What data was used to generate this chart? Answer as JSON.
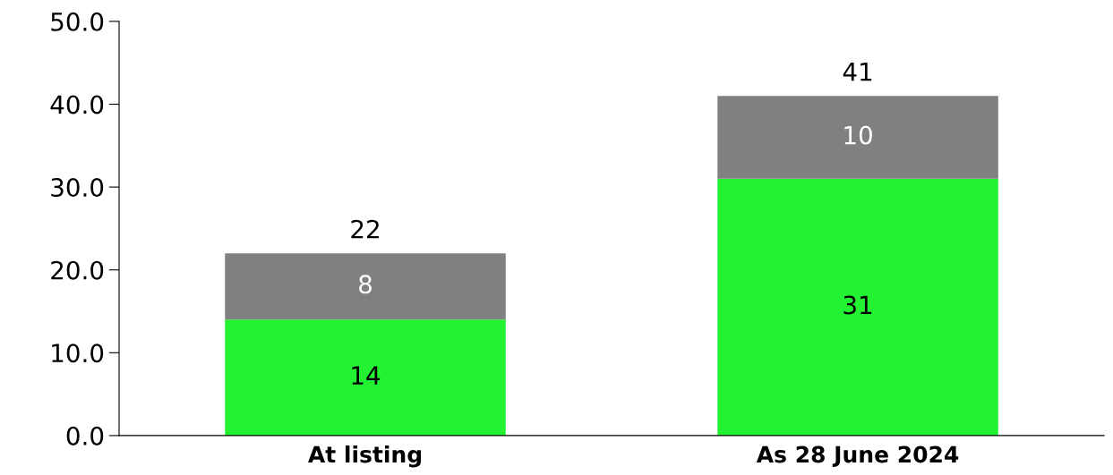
{
  "chart_data": {
    "type": "bar",
    "stacked": true,
    "categories": [
      "At listing",
      "As 28 June 2024"
    ],
    "series": [
      {
        "color": "#22f232",
        "values": [
          14,
          31
        ]
      },
      {
        "color": "#808080",
        "values": [
          8,
          10
        ]
      }
    ],
    "data_labels": true,
    "totals": [
      "22",
      "41"
    ],
    "ylim": [
      0,
      50
    ],
    "yticks": [
      {
        "value": 0,
        "label": "0.0"
      },
      {
        "value": 10,
        "label": "10.0"
      },
      {
        "value": 20,
        "label": "20.0"
      },
      {
        "value": 30,
        "label": "30.0"
      },
      {
        "value": 40,
        "label": "40.0"
      },
      {
        "value": 50,
        "label": "50.0"
      }
    ],
    "grid": false
  }
}
